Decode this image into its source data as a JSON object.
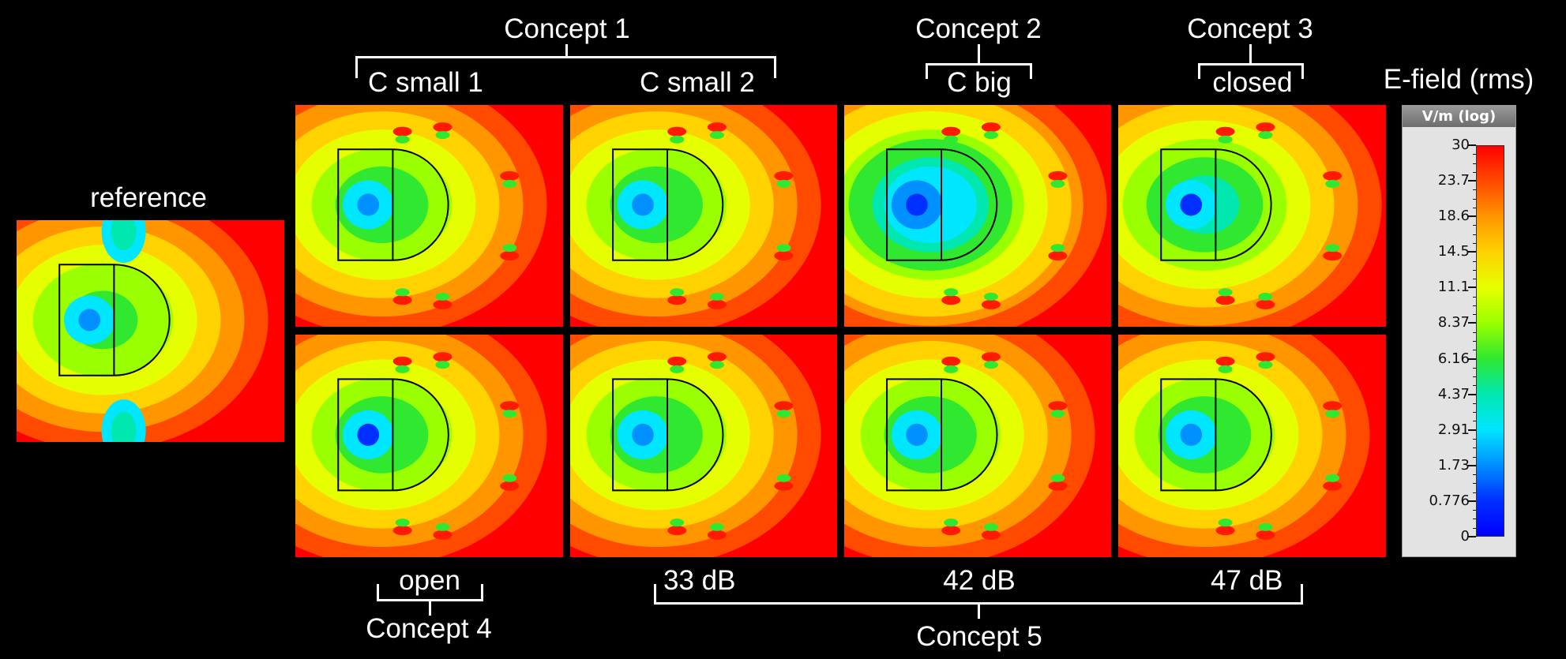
{
  "labels": {
    "reference": "reference",
    "concept1": "Concept 1",
    "c_small_1": "C small 1",
    "c_small_2": "C small 2",
    "concept2": "Concept 2",
    "c_big": "C big",
    "concept3": "Concept 3",
    "closed": "closed",
    "open": "open",
    "concept4": "Concept 4",
    "db33": "33 dB",
    "db42": "42 dB",
    "db47": "47 dB",
    "concept5": "Concept 5"
  },
  "colorbar": {
    "title": "E-field (rms)",
    "unit": "V/m (log)",
    "ticks": [
      "30",
      "23.7",
      "18.6",
      "14.5",
      "11.1",
      "8.37",
      "6.16",
      "4.37",
      "2.91",
      "1.73",
      "0.776",
      "0"
    ],
    "colors": [
      "#ff0000",
      "#ff4a00",
      "#ff9600",
      "#ffd200",
      "#e6ff00",
      "#9aff00",
      "#30e830",
      "#00e8b0",
      "#00e6ff",
      "#0090ff",
      "#0030ff",
      "#0000ff"
    ]
  },
  "panels": [
    {
      "id": "reference",
      "center_level": 0.42
    },
    {
      "id": "c-small-1",
      "center_level": 0.4
    },
    {
      "id": "c-small-2",
      "center_level": 0.4
    },
    {
      "id": "c-big",
      "center_level": 0.2
    },
    {
      "id": "closed",
      "center_level": 0.36
    },
    {
      "id": "open",
      "center_level": 0.38
    },
    {
      "id": "33db",
      "center_level": 0.4
    },
    {
      "id": "42db",
      "center_level": 0.4
    },
    {
      "id": "47db",
      "center_level": 0.4
    }
  ]
}
